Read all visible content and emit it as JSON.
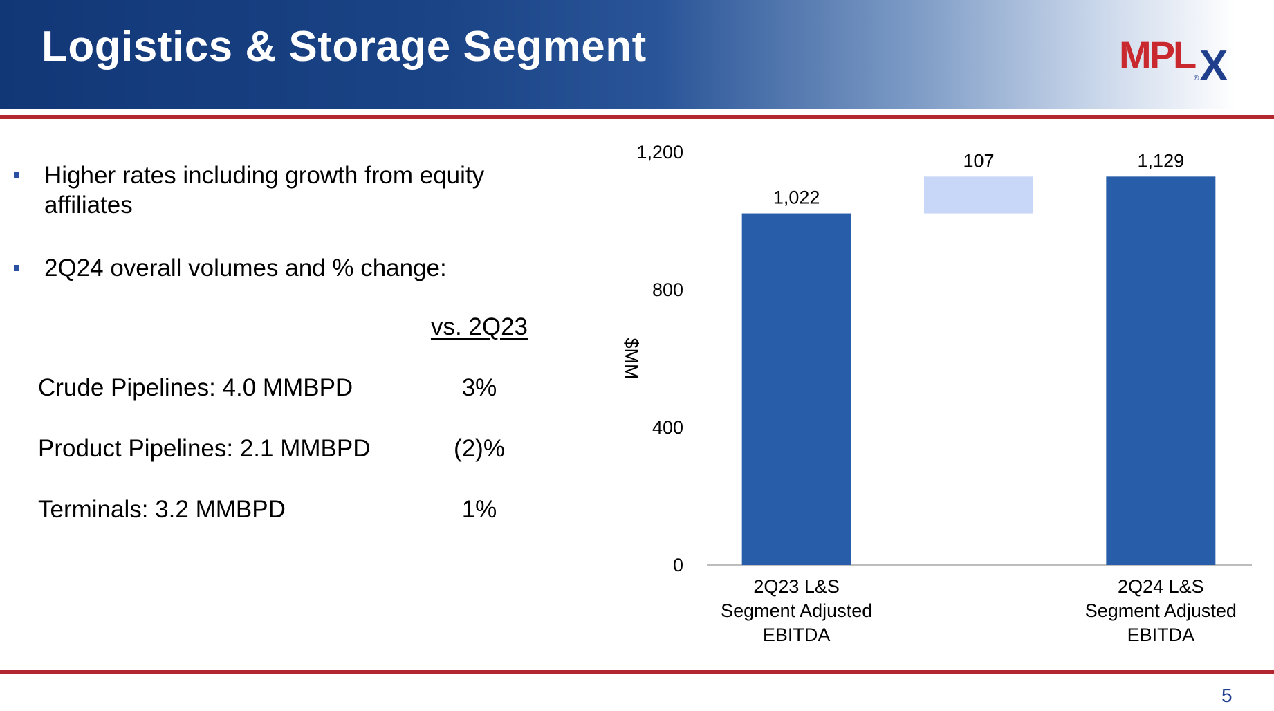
{
  "slide": {
    "title": "Logistics & Storage Segment",
    "page_number": "5",
    "logo_text": "MPLX"
  },
  "bullets": [
    {
      "text": "Higher rates including growth from equity affiliates"
    },
    {
      "text": "2Q24 overall volumes and % change:"
    }
  ],
  "volumes": {
    "comparison_header": "vs. 2Q23",
    "rows": [
      {
        "label": "Crude Pipelines: 4.0 MMBPD",
        "change": "3%"
      },
      {
        "label": "Product Pipelines: 2.1 MMBPD",
        "change": "(2)%"
      },
      {
        "label": "Terminals: 3.2 MMBPD",
        "change": "1%"
      }
    ]
  },
  "colors": {
    "header_dark": "#123777",
    "accent_red": "#b2282e",
    "bar_primary": "#285ea9",
    "bar_increase": "#c8d6f7",
    "axis_line": "#bdbdbd",
    "page_number": "#1f3f8c"
  },
  "chart_data": {
    "type": "bar",
    "subtype": "waterfall",
    "ylabel": "$MM",
    "ylim": [
      0,
      1200
    ],
    "yticks": [
      0,
      400,
      800,
      1200
    ],
    "ytick_labels": [
      "0",
      "400",
      "800",
      "1,200"
    ],
    "grid": false,
    "legend": "none",
    "bars": [
      {
        "category_lines": [
          "2Q23 L&S",
          "Segment Adjusted",
          "EBITDA"
        ],
        "kind": "total",
        "start": 0,
        "end": 1022,
        "label": "1,022"
      },
      {
        "category_lines": [],
        "kind": "increase",
        "start": 1022,
        "end": 1129,
        "label": "107"
      },
      {
        "category_lines": [
          "2Q24 L&S",
          "Segment Adjusted",
          "EBITDA"
        ],
        "kind": "total",
        "start": 0,
        "end": 1129,
        "label": "1,129"
      }
    ]
  }
}
